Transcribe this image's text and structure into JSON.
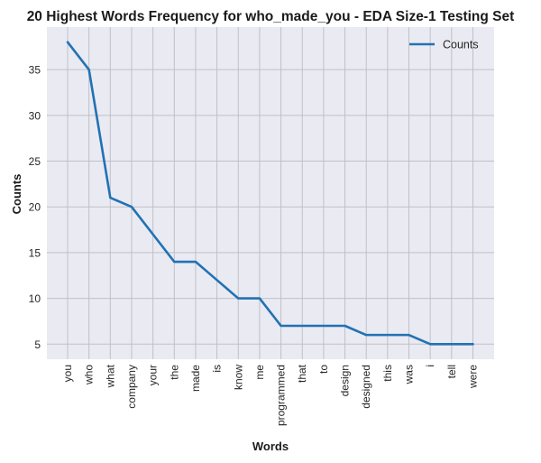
{
  "chart_data": {
    "type": "line",
    "title": "20 Highest Words Frequency for who_made_you - EDA Size-1 Testing Set",
    "xlabel": "Words",
    "ylabel": "Counts",
    "categories": [
      "you",
      "who",
      "what",
      "company",
      "your",
      "the",
      "made",
      "is",
      "know",
      "me",
      "programmed",
      "that",
      "to",
      "design",
      "designed",
      "this",
      "was",
      "i",
      "tell",
      "were"
    ],
    "series": [
      {
        "name": "Counts",
        "values": [
          38,
          35,
          21,
          20,
          17,
          14,
          14,
          12,
          10,
          10,
          7,
          7,
          7,
          7,
          6,
          6,
          6,
          5,
          5,
          5
        ]
      }
    ],
    "ylim": [
      3.35,
      39.65
    ],
    "yticks": [
      5,
      10,
      15,
      20,
      25,
      30,
      35
    ],
    "grid": true,
    "legend_position": "top-right",
    "colors": {
      "line": "#2172b4",
      "plot_bg": "#eaeaf2",
      "grid": "#c0c0c8"
    }
  }
}
